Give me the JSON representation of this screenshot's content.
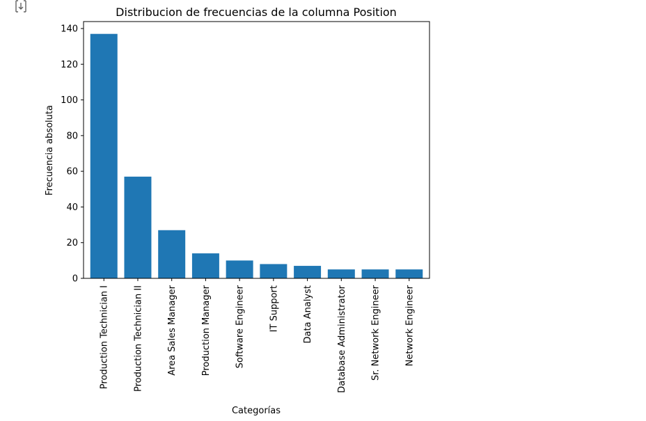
{
  "cell": {
    "output_icon": "output-expand-icon"
  },
  "chart_data": {
    "type": "bar",
    "title": "Distribucion de frecuencias de la columna Position",
    "xlabel": "Categorías",
    "ylabel": "Frecuencia absoluta",
    "categories": [
      "Production Technician I",
      "Production Technician II",
      "Area Sales Manager",
      "Production Manager",
      "Software Engineer",
      "IT Support",
      "Data Analyst",
      "Database Administrator",
      "Sr. Network Engineer",
      "Network Engineer"
    ],
    "values": [
      137,
      57,
      27,
      14,
      10,
      8,
      7,
      5,
      5,
      5
    ],
    "yticks": [
      0,
      20,
      40,
      60,
      80,
      100,
      120,
      140
    ],
    "ylim": [
      0,
      143.9
    ],
    "bar_color": "#1f77b4",
    "grid": false,
    "legend": "none"
  }
}
